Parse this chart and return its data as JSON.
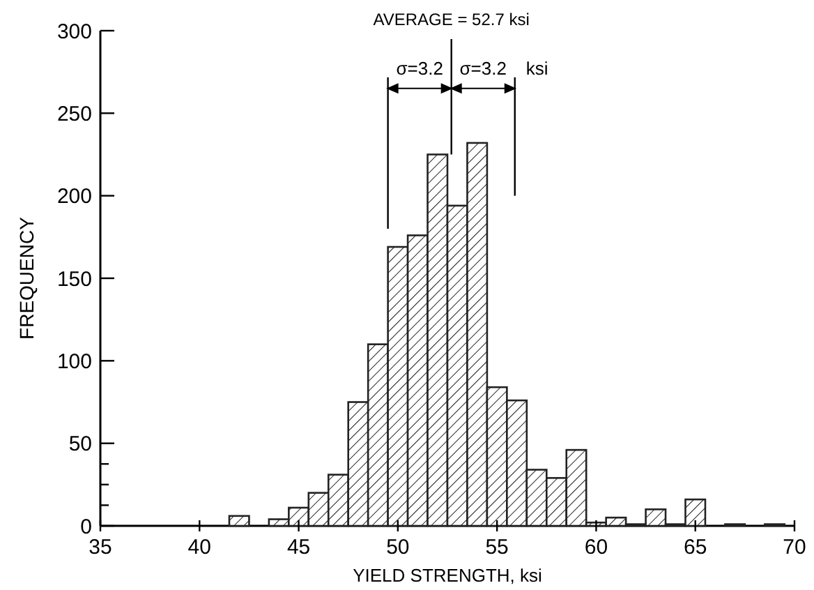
{
  "chart_data": {
    "type": "histogram",
    "xlabel": "YIELD STRENGTH, ksi",
    "ylabel": "FREQUENCY",
    "color": "#222222",
    "bins": [
      41.5,
      42.5,
      43.5,
      44.5,
      45.5,
      46.5,
      47.5,
      48.5,
      49.5,
      50.5,
      51.5,
      52.5,
      53.5,
      54.5,
      55.5,
      56.5,
      57.5,
      58.5,
      59.5,
      60.5,
      61.5,
      62.5,
      63.5,
      64.5,
      65.5,
      66.5,
      67.5,
      68.5,
      69.5
    ],
    "values": [
      6,
      0,
      4,
      11,
      20,
      31,
      75,
      110,
      169,
      176,
      225,
      194,
      232,
      84,
      76,
      34,
      29,
      46,
      2,
      5,
      1,
      10,
      1,
      16,
      0,
      1,
      0,
      1
    ],
    "xlim": [
      35,
      70
    ],
    "xticks": [
      35,
      40,
      45,
      50,
      55,
      60,
      65,
      70
    ],
    "ylim": [
      0,
      300
    ],
    "yticks": [
      0,
      {
        "value": 12.5,
        "label": null
      },
      {
        "value": 25,
        "label": null
      },
      {
        "value": 37.5,
        "label": null
      },
      50,
      100,
      150,
      200,
      250,
      300
    ],
    "ref_lines": [
      {
        "axis": "x",
        "value": 52.7,
        "label": "AVERAGE = 52.7 ksi"
      },
      {
        "axis": "x",
        "value": 49.5,
        "label": null
      },
      {
        "axis": "x",
        "value": 55.9,
        "label": null
      }
    ],
    "annotations": [
      {
        "text": "σ=3.2",
        "x": 49.5,
        "y": 265
      },
      {
        "text": "σ=3.2",
        "x": 55.9,
        "y": 265
      },
      "ksi"
    ],
    "grid": false
  }
}
